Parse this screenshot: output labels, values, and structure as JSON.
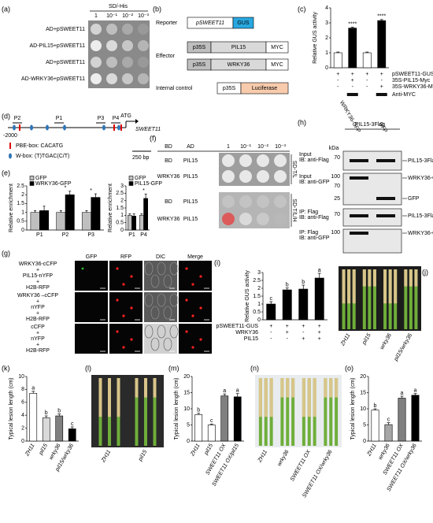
{
  "panel_labels": [
    "(a)",
    "(b)",
    "(c)",
    "(d)",
    "(e)",
    "(f)",
    "(g)",
    "(h)",
    "(i)",
    "(j)",
    "(k)",
    "(l)",
    "(m)",
    "(n)",
    "(o)"
  ],
  "panel_a": {
    "header": "SD/-His",
    "dilutions": [
      "1",
      "10⁻¹",
      "10⁻²",
      "10⁻³"
    ],
    "rows": [
      "AD+pSWEET11",
      "AD-PIL15+pSWEET11",
      "AD+pSWEET11",
      "AD-WRKY36+pSWEET11"
    ]
  },
  "panel_b": {
    "reporter": "Reporter",
    "reporter_parts": [
      "pSWEET11",
      "GUS"
    ],
    "effector": "Effector",
    "effector_rows": [
      [
        "p35S",
        "PIL15",
        "MYC"
      ],
      [
        "p35S",
        "WRKY36",
        "MYC"
      ]
    ],
    "internal": "Internal control",
    "internal_parts": [
      "p35S",
      "Luciferase"
    ]
  },
  "panel_d": {
    "start": "-2000",
    "atg": "ATG",
    "gene": "SWEET11",
    "sites": [
      "P2",
      "P1",
      "P3",
      "P4"
    ],
    "pbe": "PBE-box:  CACATG",
    "wbox": "W-box:  (T)TGAC(C/T)",
    "scale": "250 bp"
  },
  "panel_f": {
    "headers": [
      "BD",
      "AD",
      "1",
      "10⁻¹",
      "10⁻²",
      "10⁻³"
    ],
    "rows": [
      [
        "BD",
        "PIL15"
      ],
      [
        "WRKY36",
        "PIL15"
      ],
      [
        "BD",
        "PIL15"
      ],
      [
        "WRKY36",
        "PIL15"
      ]
    ],
    "media": [
      "SD-T/L",
      "SD-T/L/H"
    ]
  },
  "panel_g": {
    "columns": [
      "GFP",
      "RFP",
      "DIC",
      "Merge"
    ],
    "rows": [
      [
        "WRKY36-cCFP",
        "+",
        "PIL15-nYFP",
        "+",
        "H2B-RFP"
      ],
      [
        "WRKY36 –cCFP",
        "+",
        "nYFP",
        "+",
        "H2B-RFP"
      ],
      [
        "cCFP",
        "+",
        "nYFP",
        "+",
        "H2B-RFP"
      ]
    ]
  },
  "panel_h": {
    "bait": "PIL15-3Flag",
    "lanes": [
      "WRKY36-GFP",
      "GFP"
    ],
    "kda": "kDa",
    "blots": [
      {
        "label": [
          "Input",
          "IB: anti-Flag"
        ],
        "markers": [
          "70"
        ],
        "bands": [
          "PIL15-3Flag"
        ]
      },
      {
        "label": [
          "Input",
          "IB: anti-GFP"
        ],
        "markers": [
          "100",
          "70",
          "25"
        ],
        "bands": [
          "WRKY36-GFP",
          "GFP"
        ]
      },
      {
        "label": [
          "IP: Flag",
          "IB: anti-Flag"
        ],
        "markers": [
          "70"
        ],
        "bands": [
          "PIL15-3Flag"
        ]
      },
      {
        "label": [
          "IP: Flag",
          "IB: anti-GFP"
        ],
        "markers": [
          "100"
        ],
        "bands": [
          "WRKY36-GFP"
        ]
      }
    ]
  },
  "panel_j": {
    "labels": [
      "ZH11",
      "pil15",
      "wrky36",
      "pil15/wrky36"
    ]
  },
  "panel_l": {
    "labels": [
      "ZH11",
      "pil15"
    ]
  },
  "panel_n": {
    "labels": [
      "ZH11",
      "wrky36",
      "SWEET11 OX",
      "SWEET11 OX/wrky36"
    ]
  },
  "chart_data": [
    {
      "type": "bar",
      "ylabel": "Relative GUS activity",
      "values": [
        1.0,
        2.65,
        1.0,
        3.15
      ],
      "errors": [
        0.05,
        0.06,
        0.05,
        0.07
      ],
      "colors": [
        "#ffffff",
        "#000000",
        "#ffffff",
        "#000000"
      ],
      "ylim": [
        0,
        4
      ],
      "yticks": [
        0,
        1,
        2,
        3,
        4
      ],
      "annotations": [
        null,
        "****",
        null,
        "****"
      ],
      "conditions": [
        {
          "label": "pSWEET11-GUS",
          "signs": [
            "+",
            "+",
            "+",
            "+"
          ]
        },
        {
          "label": "35S-PIL15-Myc",
          "signs": [
            "-",
            "+",
            "-",
            "-"
          ]
        },
        {
          "label": "35S-WRKY36-Myc",
          "signs": [
            "-",
            "-",
            "-",
            "+"
          ]
        }
      ],
      "blot_label": "Anti-MYC"
    },
    {
      "type": "bar",
      "ylabel": "Relative enrichment",
      "categories": [
        "P1",
        "P2",
        "P3"
      ],
      "series": [
        {
          "name": "GFP",
          "color": "#bfbfbf",
          "values": [
            1.0,
            1.0,
            1.0
          ],
          "errors": [
            0.1,
            0.1,
            0.1
          ]
        },
        {
          "name": "WRKY36-GFP",
          "color": "#000000",
          "values": [
            1.1,
            2.0,
            1.85
          ],
          "errors": [
            0.25,
            0.2,
            0.2
          ]
        }
      ],
      "ylim": [
        0,
        2.5
      ],
      "yticks": [
        0,
        0.5,
        1,
        1.5,
        2,
        2.5
      ],
      "annotations": [
        null,
        "*",
        "*"
      ]
    },
    {
      "type": "bar",
      "ylabel": "Relative enrichment",
      "categories": [
        "P1",
        "P4"
      ],
      "series": [
        {
          "name": "GFP",
          "color": "#bfbfbf",
          "values": [
            1.0,
            1.0
          ],
          "errors": [
            0.1,
            0.1
          ]
        },
        {
          "name": "PIL15-GFP",
          "color": "#000000",
          "values": [
            0.95,
            2.15
          ],
          "errors": [
            0.15,
            0.3
          ]
        }
      ],
      "ylim": [
        0,
        3
      ],
      "yticks": [
        0,
        0.5,
        1,
        1.5,
        2,
        2.5,
        3
      ],
      "annotations": [
        null,
        "*"
      ]
    },
    {
      "type": "bar",
      "ylabel": "Relative GUS activity",
      "values": [
        1.0,
        1.9,
        1.95,
        2.65
      ],
      "errors": [
        0.15,
        0.12,
        0.25,
        0.3
      ],
      "colors": [
        "#000000",
        "#000000",
        "#000000",
        "#000000"
      ],
      "ylim": [
        0,
        3
      ],
      "yticks": [
        0,
        0.5,
        1,
        1.5,
        2,
        2.5,
        3
      ],
      "annotations": [
        "c",
        "b",
        "b",
        "a"
      ],
      "conditions": [
        {
          "label": "pSWEET11-GUS",
          "signs": [
            "+",
            "+",
            "+",
            "+"
          ]
        },
        {
          "label": "WRKY36",
          "signs": [
            "-",
            "+",
            "-",
            "+"
          ]
        },
        {
          "label": "PIL15",
          "signs": [
            "-",
            "-",
            "+",
            "+"
          ]
        }
      ]
    },
    {
      "type": "bar",
      "ylabel": "Typical lesion length (cm)",
      "categories": [
        "ZH11",
        "pil15",
        "wrky36",
        "pil15/wrky36"
      ],
      "values": [
        7.4,
        3.6,
        3.9,
        1.9
      ],
      "errors": [
        0.3,
        0.3,
        0.3,
        0.3
      ],
      "colors": [
        "#ffffff",
        "#d9d9d9",
        "#808080",
        "#000000"
      ],
      "ylim": [
        0,
        10
      ],
      "yticks": [
        0,
        2,
        4,
        6,
        8,
        10
      ],
      "annotations": [
        "a",
        "b",
        "b",
        "c"
      ]
    },
    {
      "type": "bar",
      "ylabel": "Typical lesion length (cm)",
      "categories": [
        "ZH11",
        "pil15",
        "SWEET11 OX",
        "SWEET11 OX/pil15"
      ],
      "values": [
        8.2,
        5.0,
        14.0,
        13.7
      ],
      "errors": [
        0.4,
        0.3,
        0.6,
        1.0
      ],
      "colors": [
        "#ffffff",
        "#ffffff",
        "#808080",
        "#000000"
      ],
      "ylim": [
        0,
        20
      ],
      "yticks": [
        0,
        5,
        10,
        15,
        20
      ],
      "annotations": [
        "b",
        "c",
        "a",
        "a"
      ]
    },
    {
      "type": "bar",
      "ylabel": "Typical lesion length (cm)",
      "categories": [
        "ZH11",
        "wrky36",
        "SWEET11 OX",
        "SWEET11 OX/wrky36"
      ],
      "values": [
        9.6,
        5.1,
        13.3,
        14.2
      ],
      "errors": [
        0.4,
        0.6,
        0.6,
        0.5
      ],
      "colors": [
        "#ffffff",
        "#a6a6a6",
        "#808080",
        "#000000"
      ],
      "ylim": [
        0,
        20
      ],
      "yticks": [
        0,
        5,
        10,
        15,
        20
      ],
      "annotations": [
        "b",
        "c",
        "a",
        "a"
      ]
    }
  ]
}
